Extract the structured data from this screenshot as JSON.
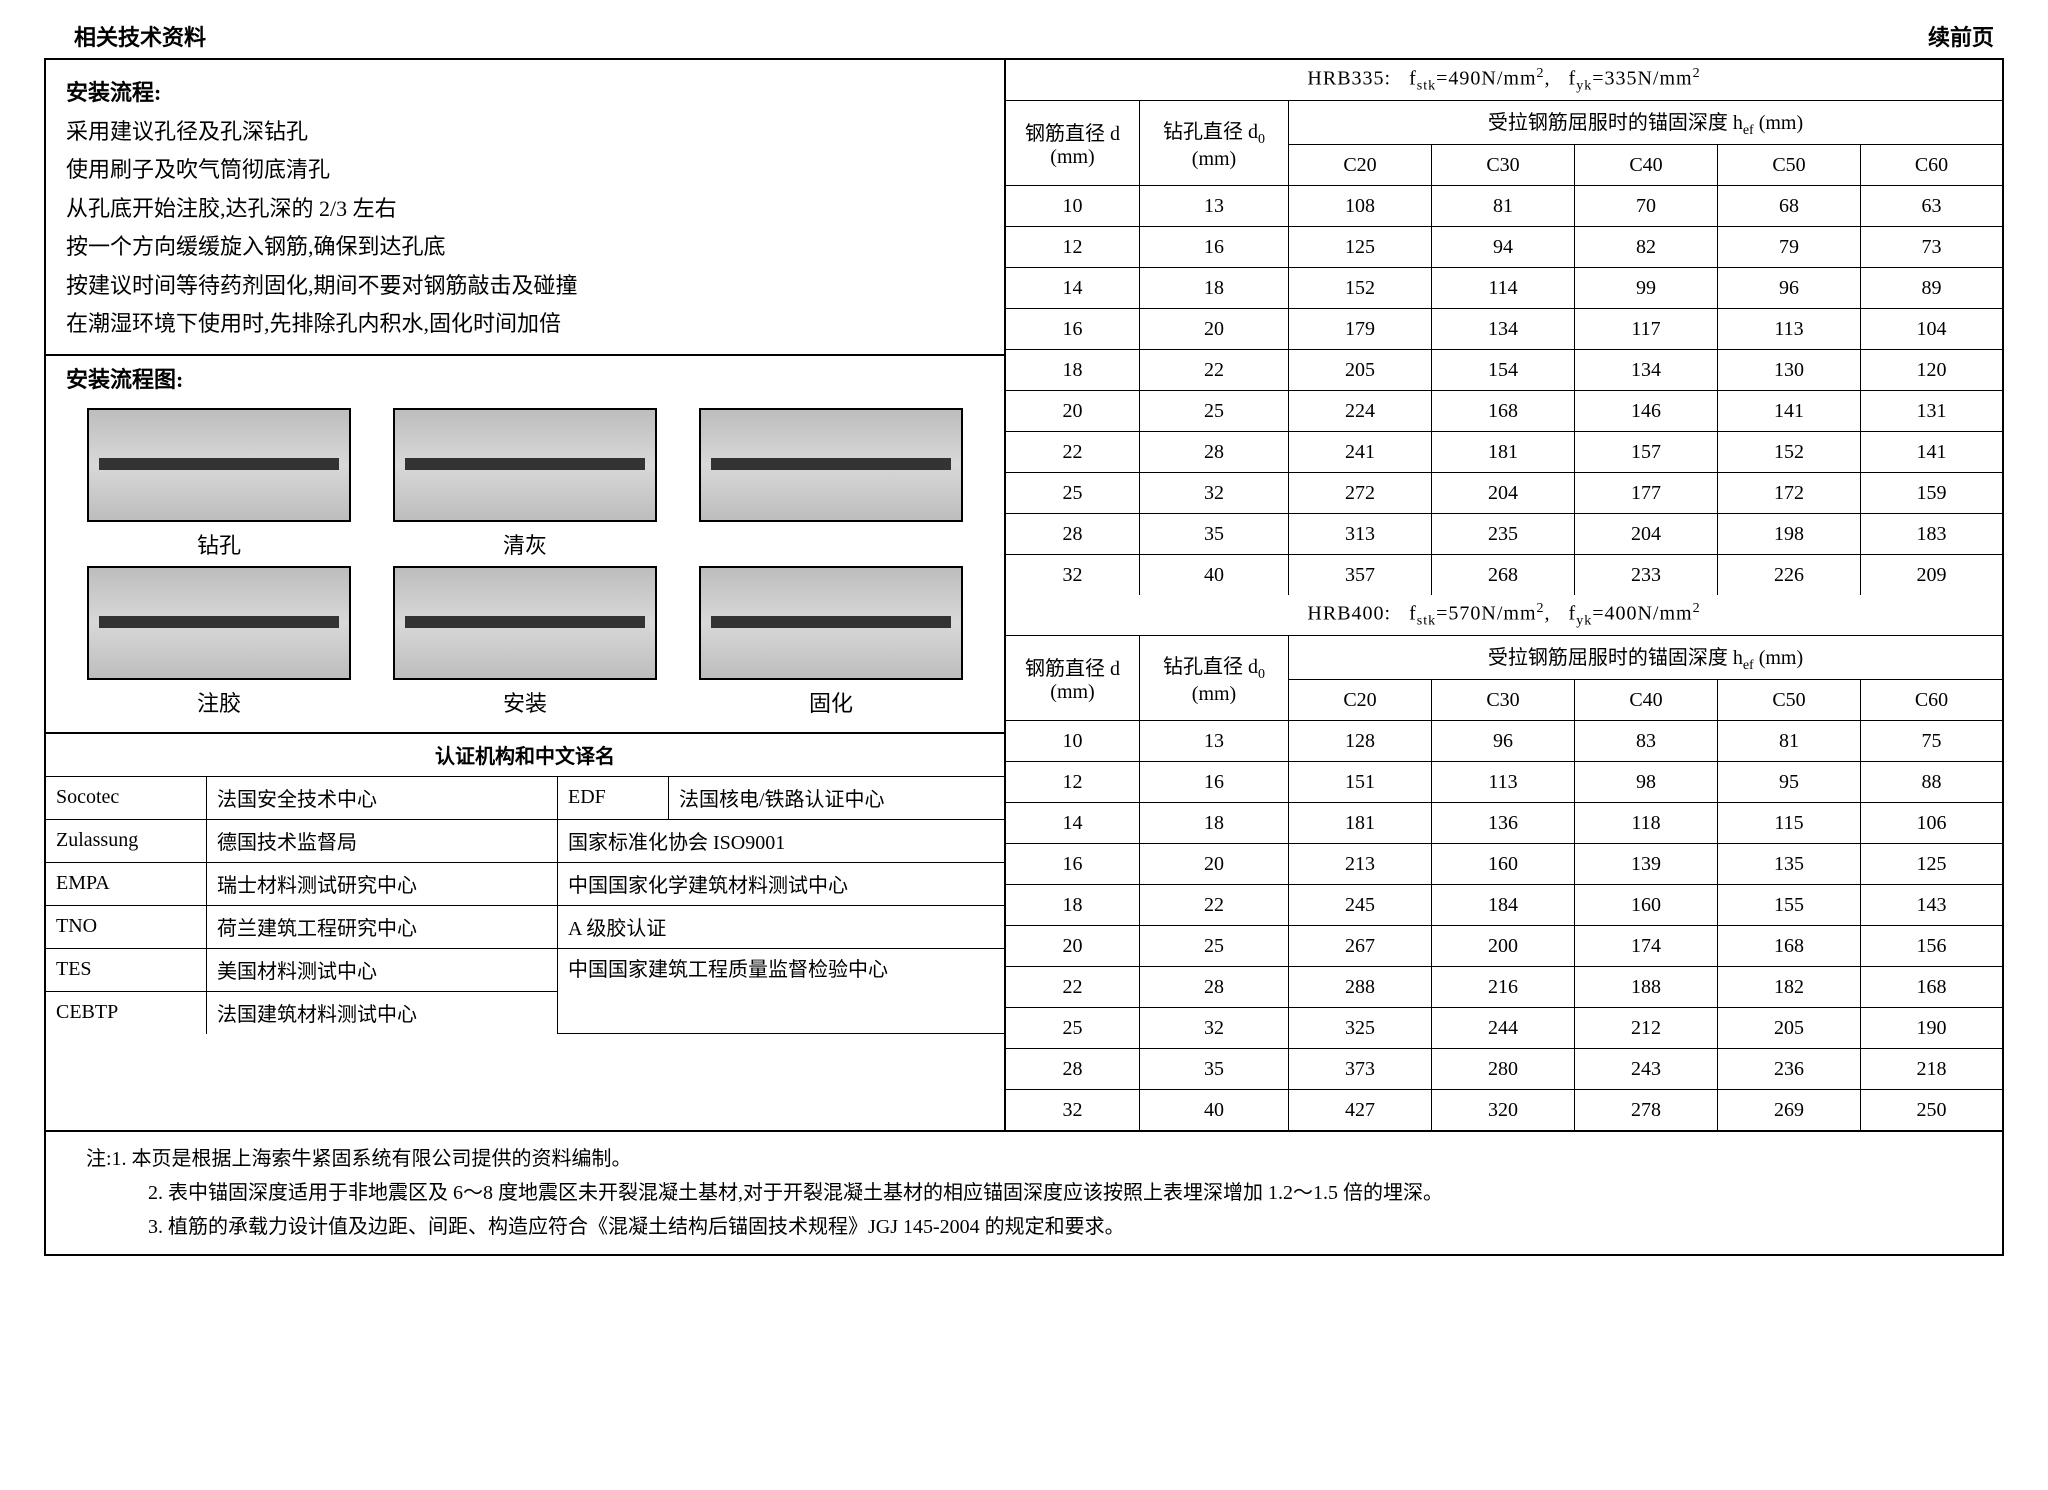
{
  "header": {
    "title": "相关技术资料",
    "cont": "续前页"
  },
  "procedure": {
    "title": "安装流程:",
    "steps": [
      "采用建议孔径及孔深钻孔",
      "使用刷子及吹气筒彻底清孔",
      "从孔底开始注胶,达孔深的 2/3 左右",
      "按一个方向缓缓旋入钢筋,确保到达孔底",
      "按建议时间等待药剂固化,期间不要对钢筋敲击及碰撞",
      "在潮湿环境下使用时,先排除孔内积水,固化时间加倍"
    ]
  },
  "flow": {
    "title": "安装流程图:",
    "row1": [
      "钻孔",
      "清灰",
      ""
    ],
    "row2": [
      "注胶",
      "安装",
      "固化"
    ]
  },
  "cert": {
    "title": "认证机构和中文译名",
    "rows": [
      [
        "Socotec",
        "法国安全技术中心",
        "EDF",
        "法国核电/铁路认证中心"
      ],
      [
        "Zulassung",
        "德国技术监督局",
        "国家标准化协会 ISO9001",
        ""
      ],
      [
        "EMPA",
        "瑞士材料测试研究中心",
        "中国国家化学建筑材料测试中心",
        ""
      ],
      [
        "TNO",
        "荷兰建筑工程研究中心",
        "A 级胶认证",
        ""
      ],
      [
        "TES",
        "美国材料测试中心",
        "中国国家建筑工程质量监督检验中",
        ""
      ],
      [
        "CEBTP",
        "法国建筑材料测试中心",
        "心",
        ""
      ]
    ]
  },
  "table335": {
    "spec_prefix": "HRB335:",
    "spec_stk": "=490N/mm",
    "spec_yk": "=335N/mm",
    "h1_col1": "钢筋直径 d",
    "h1_col2": "钻孔直径 d",
    "h1_span": "受拉钢筋屈服时的锚固深度 h",
    "h1_span_suffix": " (mm)",
    "unit": "(mm)",
    "grades": [
      "C20",
      "C30",
      "C40",
      "C50",
      "C60"
    ],
    "rows": [
      [
        "10",
        "13",
        "108",
        "81",
        "70",
        "68",
        "63"
      ],
      [
        "12",
        "16",
        "125",
        "94",
        "82",
        "79",
        "73"
      ],
      [
        "14",
        "18",
        "152",
        "114",
        "99",
        "96",
        "89"
      ],
      [
        "16",
        "20",
        "179",
        "134",
        "117",
        "113",
        "104"
      ],
      [
        "18",
        "22",
        "205",
        "154",
        "134",
        "130",
        "120"
      ],
      [
        "20",
        "25",
        "224",
        "168",
        "146",
        "141",
        "131"
      ],
      [
        "22",
        "28",
        "241",
        "181",
        "157",
        "152",
        "141"
      ],
      [
        "25",
        "32",
        "272",
        "204",
        "177",
        "172",
        "159"
      ],
      [
        "28",
        "35",
        "313",
        "235",
        "204",
        "198",
        "183"
      ],
      [
        "32",
        "40",
        "357",
        "268",
        "233",
        "226",
        "209"
      ]
    ]
  },
  "table400": {
    "spec_prefix": "HRB400:",
    "spec_stk": "=570N/mm",
    "spec_yk": "=400N/mm",
    "rows": [
      [
        "10",
        "13",
        "128",
        "96",
        "83",
        "81",
        "75"
      ],
      [
        "12",
        "16",
        "151",
        "113",
        "98",
        "95",
        "88"
      ],
      [
        "14",
        "18",
        "181",
        "136",
        "118",
        "115",
        "106"
      ],
      [
        "16",
        "20",
        "213",
        "160",
        "139",
        "135",
        "125"
      ],
      [
        "18",
        "22",
        "245",
        "184",
        "160",
        "155",
        "143"
      ],
      [
        "20",
        "25",
        "267",
        "200",
        "174",
        "168",
        "156"
      ],
      [
        "22",
        "28",
        "288",
        "216",
        "188",
        "182",
        "168"
      ],
      [
        "25",
        "32",
        "325",
        "244",
        "212",
        "205",
        "190"
      ],
      [
        "28",
        "35",
        "373",
        "280",
        "243",
        "236",
        "218"
      ],
      [
        "32",
        "40",
        "427",
        "320",
        "278",
        "269",
        "250"
      ]
    ]
  },
  "notes": {
    "n1": "注:1.  本页是根据上海索牛紧固系统有限公司提供的资料编制。",
    "n2": "2.  表中锚固深度适用于非地震区及 6～8 度地震区未开裂混凝土基材,对于开裂混凝土基材的相应锚固深度应该按照上表埋深增加 1.2～1.5 倍的埋深。",
    "n3": "3.  植筋的承载力设计值及边距、间距、构造应符合《混凝土结构后锚固技术规程》JGJ 145-2004 的规定和要求。"
  }
}
